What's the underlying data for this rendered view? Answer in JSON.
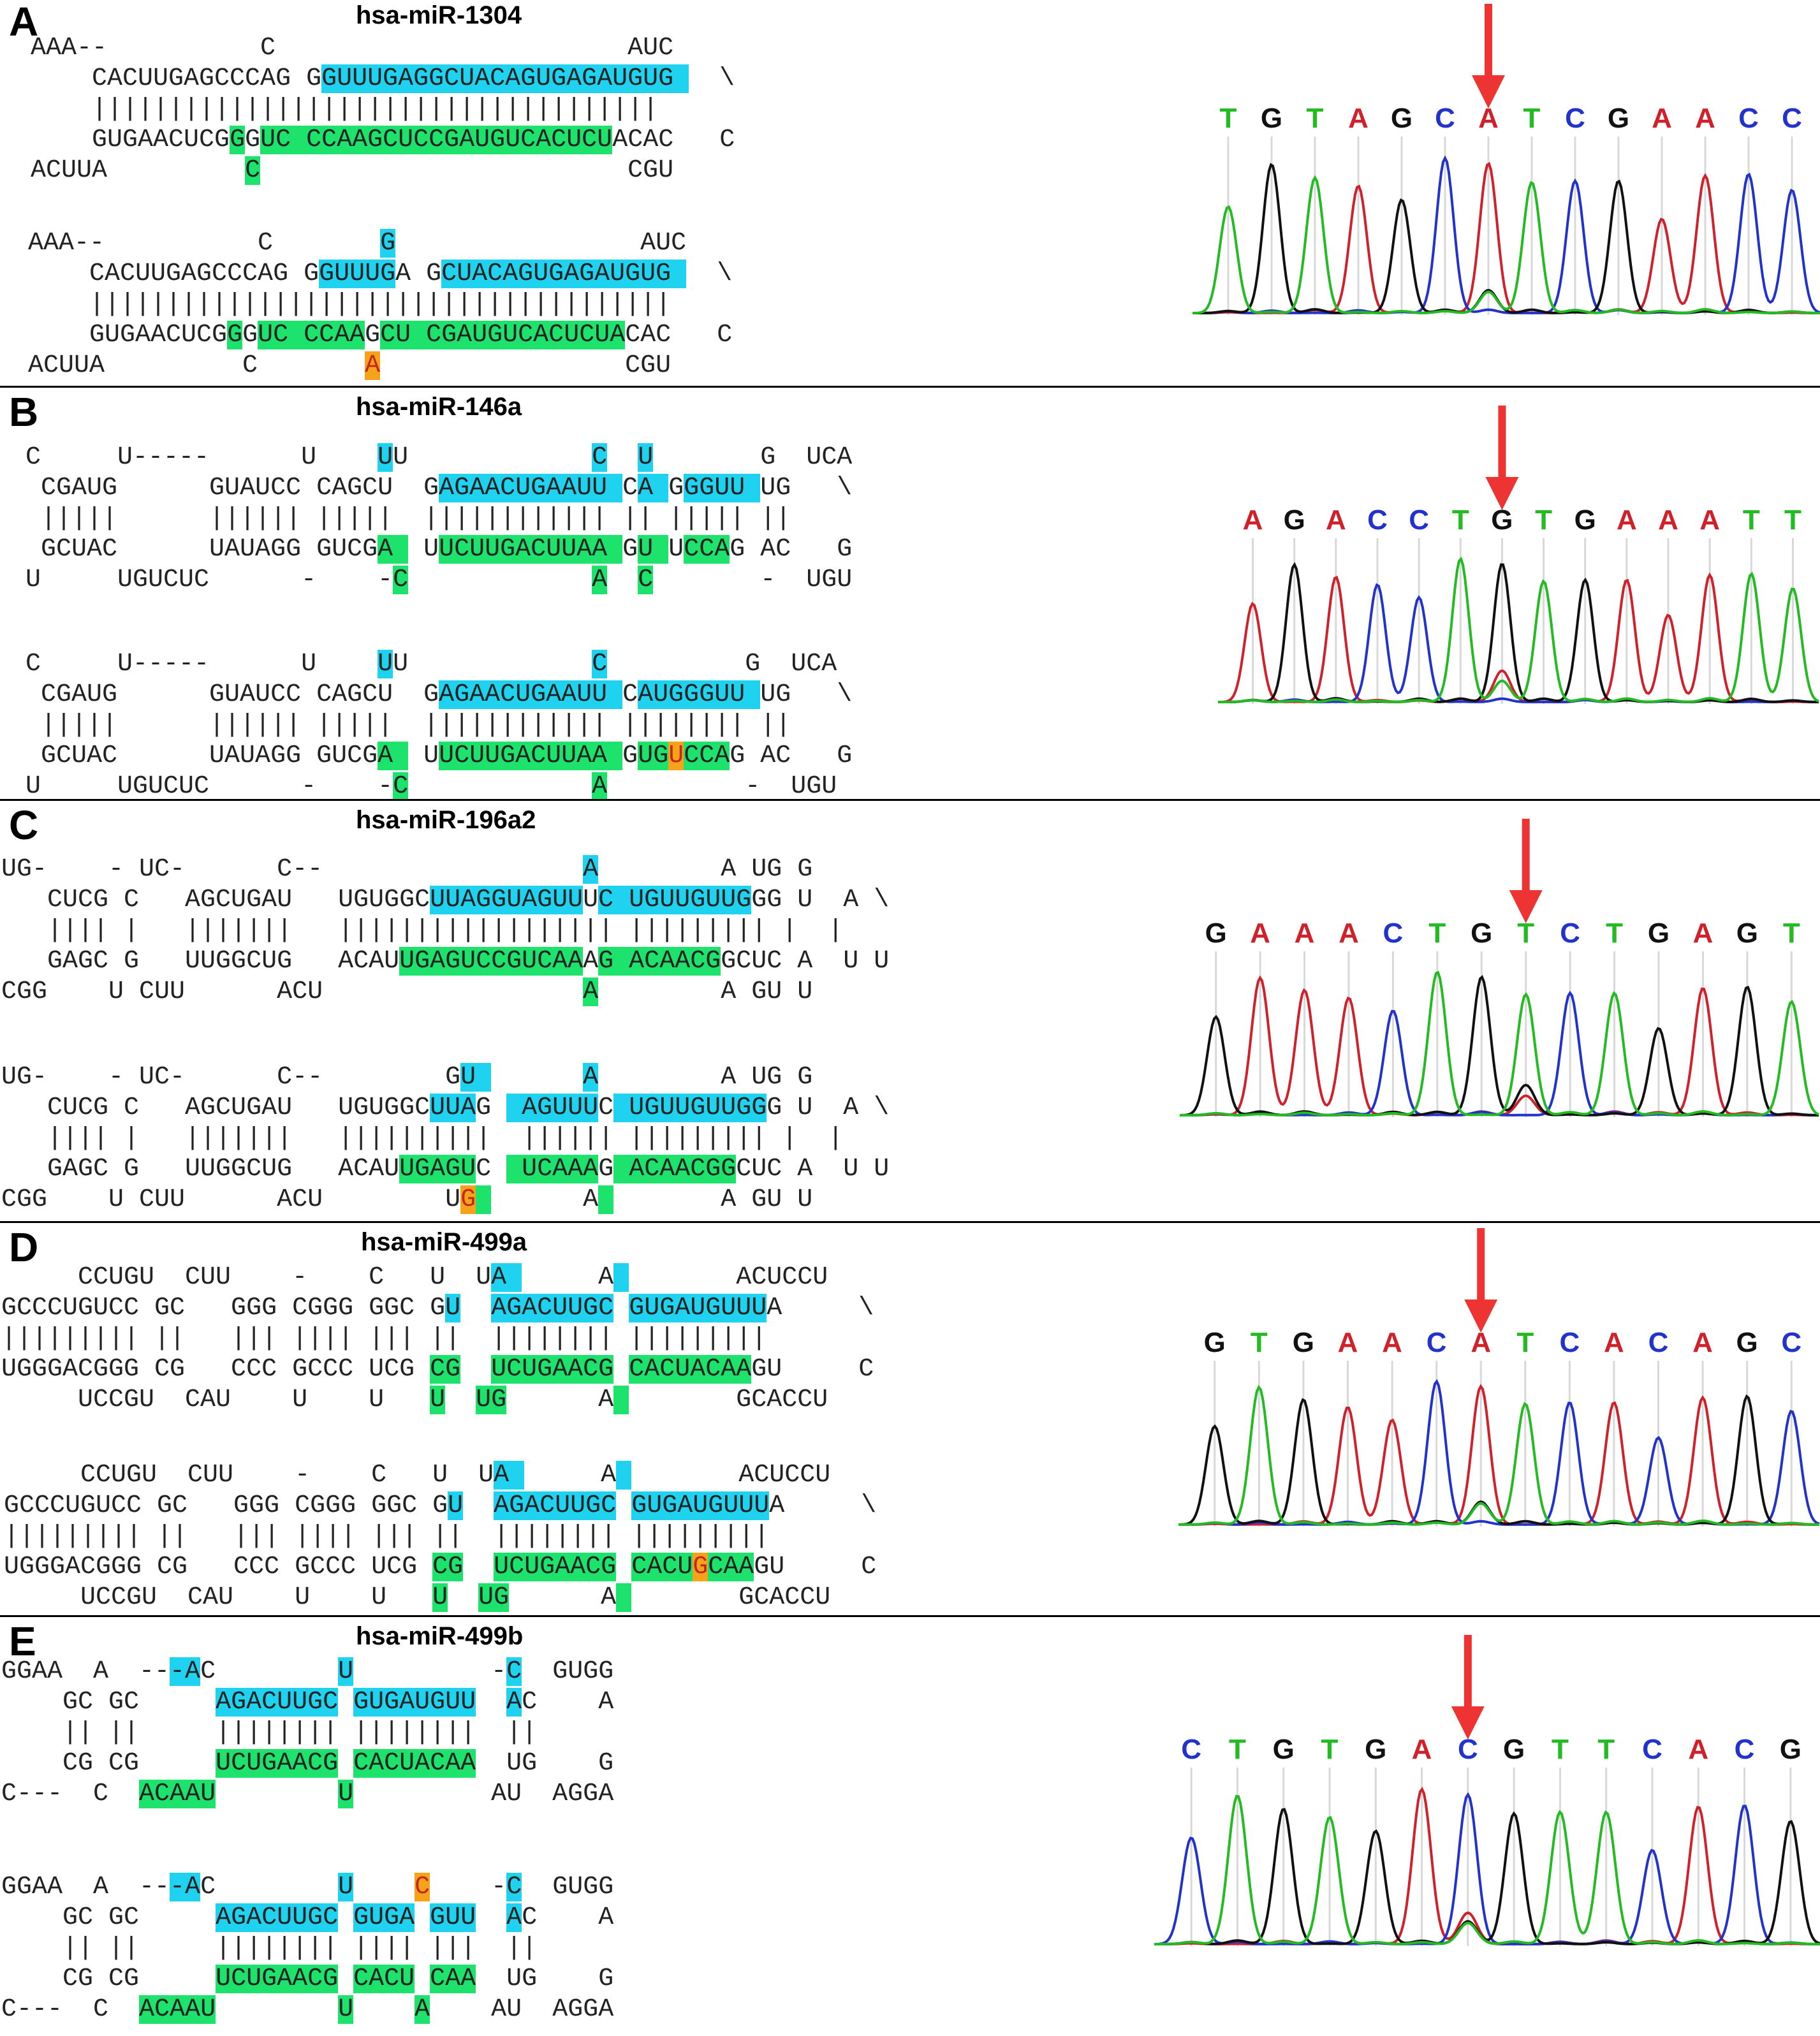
{
  "colors": {
    "highlight_mature_5p": "#1fd3f0",
    "highlight_mature_3p": "#1de26b",
    "highlight_variant": "#f7a21b",
    "variant_text": "#c4281c",
    "base_A": "#d0202a",
    "base_C": "#2233cc",
    "base_G": "#111111",
    "base_T": "#22bb22",
    "arrow": "#ee3333",
    "divider": "#000000"
  },
  "panels": [
    {
      "letter": "A",
      "title": "hsa-miR-1304",
      "structures": [
        [
          "AAA--          C                       AUC",
          "    CACUUGAGCCCAG GGUUUGAGGCUACAGUGAGAUGUG   \\",
          "    |||||||||||||||||||||||||||||||||||||",
          "    GUGAACUCGGGUC CCAAGCUCCGAUGUCACUCUACAC   C",
          "ACUUA         C                        CGU"
        ],
        [
          "AAA--          C       G                AUC",
          "    CACUUGAGCCCAG GGUUUGA GCUACAGUGAGAUGUG   \\",
          "    ||||||||||||||||||||||||||||||||||||||",
          "    GUGAACUCGGGUC CCAAGCU CGAUGUCACUCUACAC   C",
          "ACUUA         C       A                CGU"
        ]
      ],
      "chromatogram": {
        "bases": [
          "T",
          "G",
          "T",
          "A",
          "G",
          "C",
          "A",
          "T",
          "C",
          "G",
          "A",
          "A",
          "C",
          "C"
        ],
        "variant_index": 6
      }
    },
    {
      "letter": "B",
      "title": "hsa-miR-146a",
      "structures": [
        [
          "C     U-----      U    UU            C  U       G  UCA",
          " CGAUG      GUAUCC CAGCU  GAGAACUGAAUU CA GGGUU UG   \\",
          " |||||      |||||| |||||  |||||||||||| || ||||| ||",
          " GCUAC      UAUAGG GUCGA  UUCUUGACUUAA GU UCCAG AC   G",
          "U     UGUCUC      -    -C            A  C       -  UGU"
        ],
        [
          "C     U-----      U    UU            C         G  UCA",
          " CGAUG      GUAUCC CAGCU  GAGAACUGAAUU CAUGGGUU UG   \\",
          " |||||      |||||| |||||  |||||||||||| |||||||| ||",
          " GCUAC      UAUAGG GUCGA  UUCUUGACUUAA GUGUCCAG AC   G",
          "U     UGUCUC      -    -C            A         -  UGU"
        ]
      ],
      "chromatogram": {
        "bases": [
          "A",
          "G",
          "A",
          "C",
          "C",
          "T",
          "G",
          "T",
          "G",
          "A",
          "A",
          "A",
          "T",
          "T"
        ],
        "variant_index": 6
      }
    },
    {
      "letter": "C",
      "title": "hsa-miR-196a2",
      "structures": [
        [
          "UG-    - UC-      C--                 A        A UG G",
          "   CUCG C   AGCUGAU   UGUGGCUUAGGUAGUUUC UGUUGUUGGG U  A \\",
          "   |||| |   |||||||   |||||||||||||||||| ||||||||| |  |",
          "   GAGC G   UUGGCUG   ACAUUGAGUCCGUCAAAG ACAACGGCUC A  U U",
          "CGG    U CUU      ACU                 A        A GU U"
        ],
        [
          "UG-    - UC-      C--        GU       A        A UG G",
          "   CUCG C   AGCUGAU   UGUGGCUUAG  AGUUUC UGUUGUUGGG U  A \\",
          "   |||| |   |||||||   ||||||||||  |||||| ||||||||| |  |",
          "   GAGC G   UUGGCUG   ACAUUGAGUC  UCAAAG ACAACGGCUC A  U U",
          "CGG    U CUU      ACU        UG       A        A GU U"
        ]
      ],
      "chromatogram": {
        "bases": [
          "G",
          "A",
          "A",
          "A",
          "C",
          "T",
          "G",
          "T",
          "C",
          "T",
          "G",
          "A",
          "G",
          "T"
        ],
        "variant_index": 7
      }
    },
    {
      "letter": "D",
      "title": "hsa-miR-499a",
      "structures": [
        [
          "     CCUGU  CUU    -    C   U  UA      A        ACUCCU",
          "GCCCUGUCC GC   GGG CGGG GGC GU  AGACUUGC GUGAUGUUUA     \\",
          "||||||||| ||   ||| |||| ||| ||  |||||||| |||||||||",
          "UGGGACGGG CG   CCC GCCC UCG CG  UCUGAACG CACUACAAGU     C",
          "     UCCGU  CAU    U    U   U  UG      A        GCACCU"
        ],
        [
          "     CCUGU  CUU    -    C   U  UA      A        ACUCCU",
          "GCCCUGUCC GC   GGG CGGG GGC GU  AGACUUGC GUGAUGUUUA     \\",
          "||||||||| ||   ||| |||| ||| ||  |||||||| |||||||||",
          "UGGGACGGG CG   CCC GCCC UCG CG  UCUGAACG CACUGCAAGU     C",
          "     UCCGU  CAU    U    U   U  UG      A        GCACCU"
        ]
      ],
      "chromatogram": {
        "bases": [
          "G",
          "T",
          "G",
          "A",
          "A",
          "C",
          "A",
          "T",
          "C",
          "A",
          "C",
          "A",
          "G",
          "C"
        ],
        "variant_index": 6
      }
    },
    {
      "letter": "E",
      "title": "hsa-miR-499b",
      "structures": [
        [
          "GGAA  A  ---AC        U         -C  GUGG",
          "    GC GC     AGACUUGC GUGAUGUU  AC    A",
          "    || ||     |||||||| ||||||||  ||",
          "    CG CG     UCUGAACG CACUACAA  UG    G",
          "C---  C  ACAAU        U         AU  AGGA"
        ],
        [
          "GGAA  A  ---AC        U    C    -C  GUGG",
          "    GC GC     AGACUUGC GUGA GUU  AC    A",
          "    || ||     |||||||| |||| |||  ||",
          "    CG CG     UCUGAACG CACU CAA  UG    G",
          "C---  C  ACAAU        U    A    AU  AGGA"
        ]
      ],
      "chromatogram": {
        "bases": [
          "C",
          "T",
          "G",
          "T",
          "G",
          "A",
          "C",
          "G",
          "T",
          "T",
          "C",
          "A",
          "C",
          "G"
        ],
        "variant_index": 6
      }
    }
  ]
}
